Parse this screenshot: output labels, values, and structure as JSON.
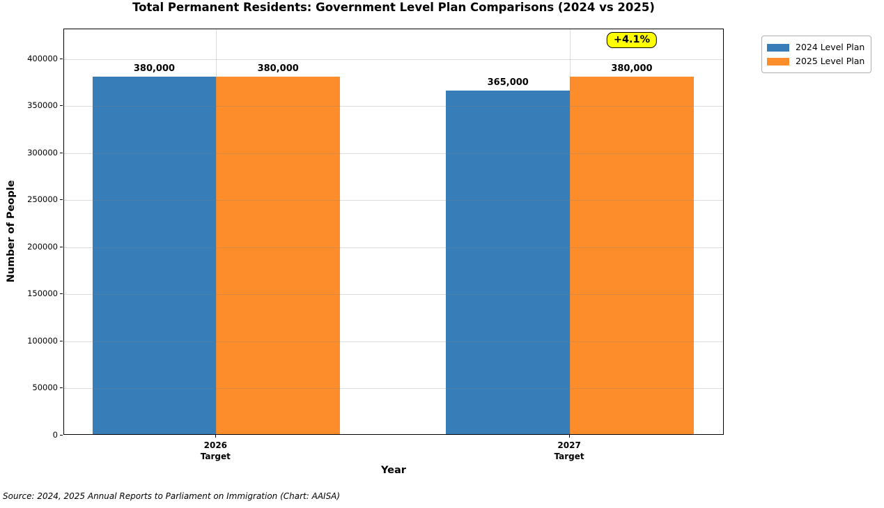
{
  "figure": {
    "source_note": "Source: 2024, 2025 Annual Reports to Parliament on Immigration (Chart: AAISA)"
  },
  "chart_data": {
    "type": "bar",
    "title": "Total Permanent Residents: Government Level Plan Comparisons (2024 vs 2025)",
    "xlabel": "Year",
    "ylabel": "Number of People",
    "categories": [
      "2026 Target",
      "2027 Target"
    ],
    "category_lines": [
      [
        "2026",
        "Target"
      ],
      [
        "2027",
        "Target"
      ]
    ],
    "x_positions": [
      0,
      1
    ],
    "xlim": [
      -0.43,
      1.437
    ],
    "bar_width": 0.35,
    "ylim": [
      0,
      432000
    ],
    "yticks": [
      0,
      50000,
      100000,
      150000,
      200000,
      250000,
      300000,
      350000,
      400000
    ],
    "ytick_labels": [
      "0",
      "50000",
      "100000",
      "150000",
      "200000",
      "250000",
      "300000",
      "350000",
      "400000"
    ],
    "grid": true,
    "legend_position": "upper right, outside axes",
    "series": [
      {
        "name": "2024 Level Plan",
        "color": "#377eb8",
        "values": [
          380000,
          365000
        ],
        "labels": [
          "380,000",
          "365,000"
        ]
      },
      {
        "name": "2025 Level Plan",
        "color": "#fd8d2a",
        "values": [
          380000,
          380000
        ],
        "labels": [
          "380,000",
          "380,000"
        ]
      }
    ],
    "annotation": {
      "text": "+4.1%",
      "bg_color": "#ffff00",
      "border_color": "#000000",
      "anchored_to": "2027 Target / 2025 Level Plan bar"
    }
  }
}
